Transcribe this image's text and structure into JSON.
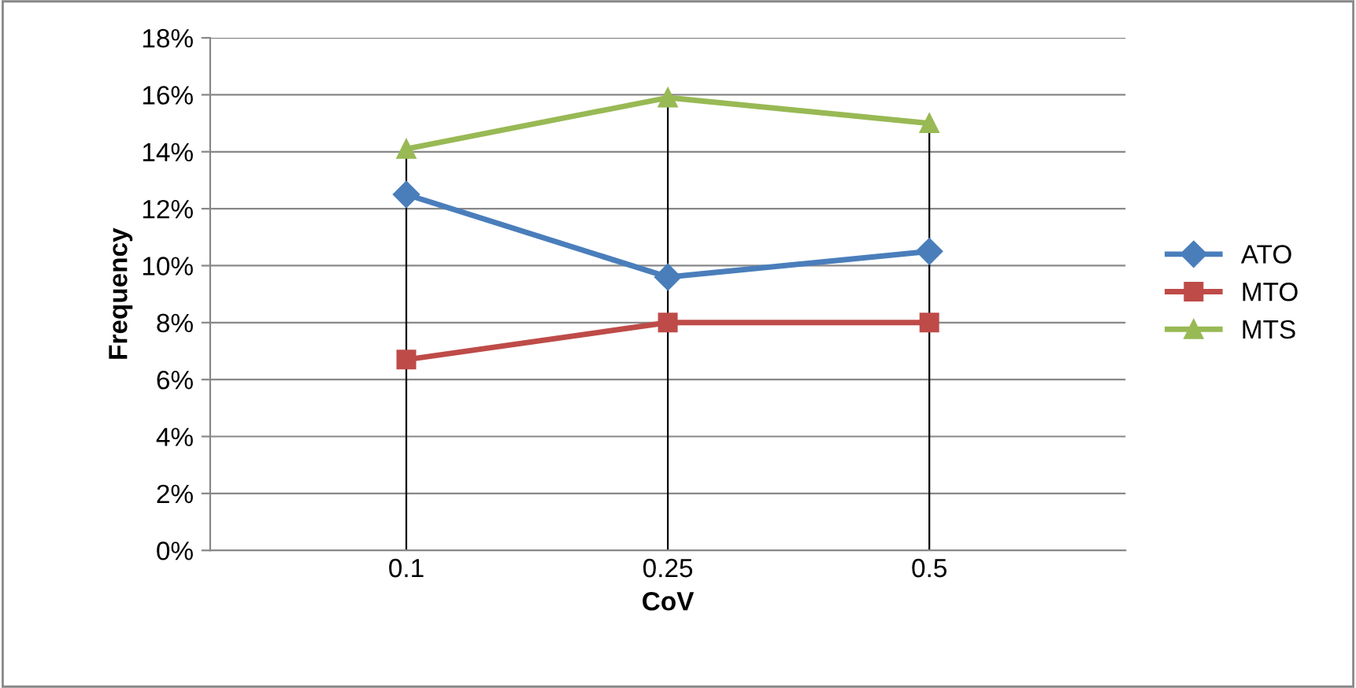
{
  "chart_data": {
    "type": "line",
    "xlabel": "CoV",
    "ylabel": "Frequency",
    "categories": [
      "0.1",
      "0.25",
      "0.5"
    ],
    "series": [
      {
        "name": "ATO",
        "color": "#4a7ebb",
        "marker": "diamond",
        "values": [
          12.5,
          9.6,
          10.5
        ]
      },
      {
        "name": "MTO",
        "color": "#be4b48",
        "marker": "square",
        "values": [
          6.7,
          8.0,
          8.0
        ]
      },
      {
        "name": "MTS",
        "color": "#98b954",
        "marker": "triangle",
        "values": [
          14.1,
          15.9,
          15.0
        ]
      }
    ],
    "ylim": [
      0,
      18
    ],
    "yticks": [
      {
        "value": 0,
        "label": "0%"
      },
      {
        "value": 2,
        "label": "2%"
      },
      {
        "value": 4,
        "label": "4%"
      },
      {
        "value": 6,
        "label": "6%"
      },
      {
        "value": 8,
        "label": "8%"
      },
      {
        "value": 10,
        "label": "10%"
      },
      {
        "value": 12,
        "label": "12%"
      },
      {
        "value": 14,
        "label": "14%"
      },
      {
        "value": 16,
        "label": "16%"
      },
      {
        "value": 18,
        "label": "18%"
      }
    ],
    "ref_lines": [
      {
        "axis": "x",
        "value": "0.1",
        "color": "#000000"
      },
      {
        "axis": "x",
        "value": "0.25",
        "color": "#000000"
      },
      {
        "axis": "x",
        "value": "0.5",
        "color": "#000000"
      }
    ],
    "grid": "y",
    "legend": "right",
    "line_style": "solid"
  }
}
